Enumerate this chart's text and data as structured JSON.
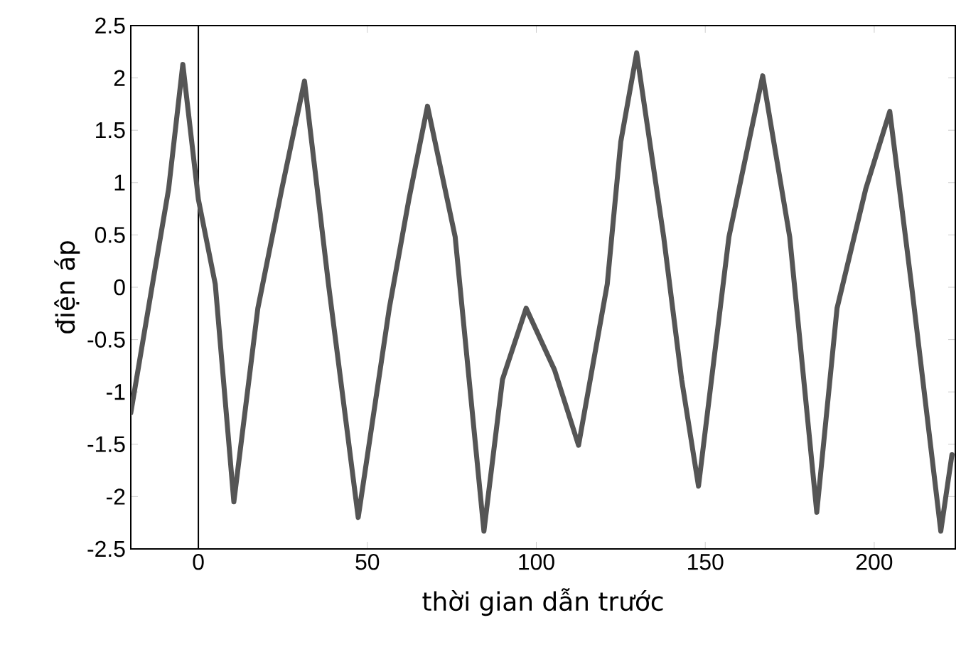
{
  "chart_data": {
    "type": "line",
    "xlabel": "thời gian dẫn trước",
    "ylabel": "điện áp",
    "x": [
      -20,
      -14,
      -8.8,
      -4.6,
      0,
      5,
      10.5,
      17.6,
      24.7,
      31.4,
      38.5,
      47.3,
      56.5,
      62.3,
      67.8,
      76,
      84.5,
      90,
      97,
      105.4,
      112.5,
      121,
      125,
      129.7,
      137.7,
      143,
      148,
      157,
      167,
      175,
      183,
      189,
      197.5,
      204.6,
      211,
      219.7,
      223
    ],
    "series": [
      {
        "color": "#555555",
        "line_style": "solid",
        "values": [
          -1.2,
          -0.05,
          0.94,
          2.13,
          0.84,
          0.03,
          -2.05,
          -0.2,
          0.94,
          1.97,
          0.03,
          -2.2,
          -0.2,
          0.84,
          1.73,
          0.48,
          -2.33,
          -0.88,
          -0.2,
          -0.79,
          -1.51,
          0.03,
          1.39,
          2.24,
          0.48,
          -0.88,
          -1.9,
          0.48,
          2.02,
          0.48,
          -2.15,
          -0.2,
          0.94,
          1.68,
          0.03,
          -2.33,
          -1.6
        ]
      }
    ],
    "xlim": [
      -20,
      224
    ],
    "ylim": [
      -2.5,
      2.5
    ],
    "xticks": [
      0,
      50,
      100,
      150,
      200
    ],
    "yticks": [
      -2.5,
      -2,
      -1.5,
      -1,
      -0.5,
      0,
      0.5,
      1,
      1.5,
      2,
      2.5
    ],
    "ref_lines": [
      {
        "axis": "x",
        "value": 0,
        "color": "#000000"
      }
    ]
  }
}
